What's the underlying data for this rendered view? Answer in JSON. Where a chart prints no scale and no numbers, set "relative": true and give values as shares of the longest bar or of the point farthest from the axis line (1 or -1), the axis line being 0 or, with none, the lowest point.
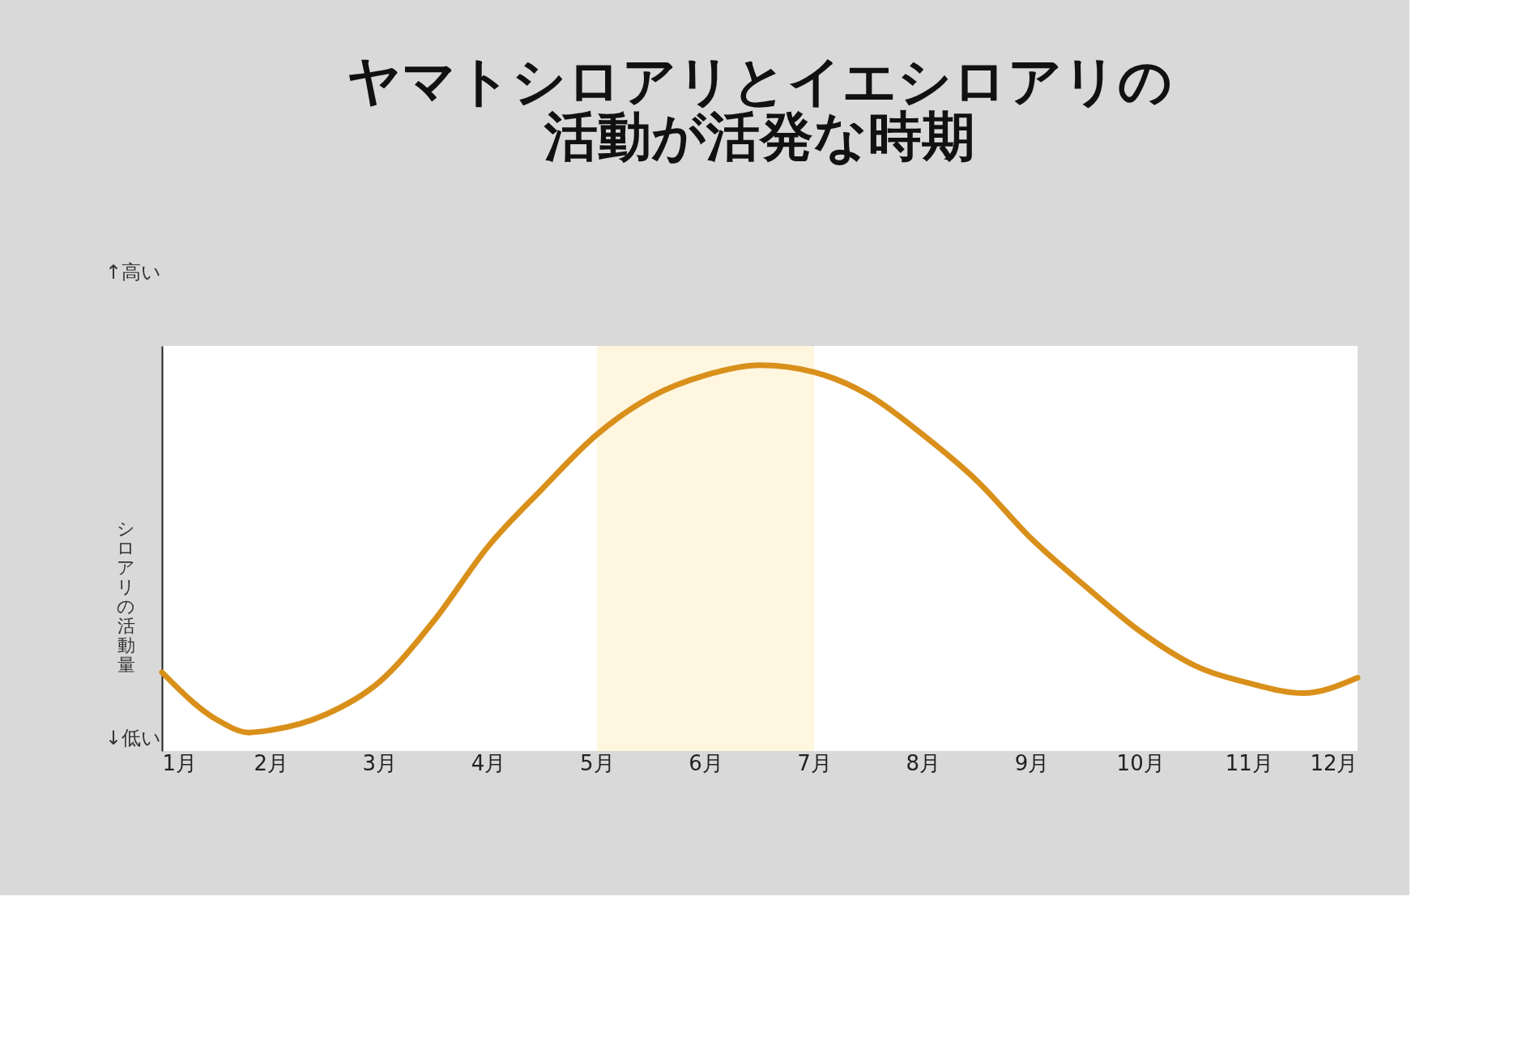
{
  "chart_data": {
    "type": "line",
    "title": [
      "ヤマトシロアリとイエシロアリの",
      "活動が活発な時期"
    ],
    "ylabel": "シロアリの活動量",
    "relative": true,
    "x": [
      1,
      1.5,
      1.8,
      2,
      2.5,
      3,
      3.5,
      4,
      4.5,
      5,
      5.5,
      6,
      6.5,
      7,
      7.5,
      8,
      8.5,
      9,
      9.5,
      10,
      10.5,
      11,
      11.5,
      12
    ],
    "series": [
      {
        "color": "#d9901a",
        "values": [
          0.204,
          0.082,
          0.048,
          0.054,
          0.094,
          0.179,
          0.337,
          0.53,
          0.68,
          0.82,
          0.918,
          0.974,
          1.0,
          0.982,
          0.923,
          0.82,
          0.7,
          0.55,
          0.426,
          0.31,
          0.222,
          0.176,
          0.15,
          0.19
        ]
      }
    ],
    "xlim": [
      1,
      12
    ],
    "xticks": [
      {
        "value": 1,
        "label": "1月"
      },
      {
        "value": 2,
        "label": "2月"
      },
      {
        "value": 3,
        "label": "3月"
      },
      {
        "value": 4,
        "label": "4月"
      },
      {
        "value": 5,
        "label": "5月"
      },
      {
        "value": 6,
        "label": "6月"
      },
      {
        "value": 7,
        "label": "7月"
      },
      {
        "value": 8,
        "label": "8月"
      },
      {
        "value": 9,
        "label": "9月"
      },
      {
        "value": 10,
        "label": "10月"
      },
      {
        "value": 11,
        "label": "11月"
      },
      {
        "value": 12,
        "label": "12月"
      }
    ],
    "bands": [
      {
        "axis": "x",
        "from": 5,
        "to": 7,
        "color": "#fff6e0"
      }
    ],
    "annotations": [
      "↑高い",
      "↓低い"
    ],
    "grid": false,
    "marker": "none",
    "line_style": "solid"
  }
}
